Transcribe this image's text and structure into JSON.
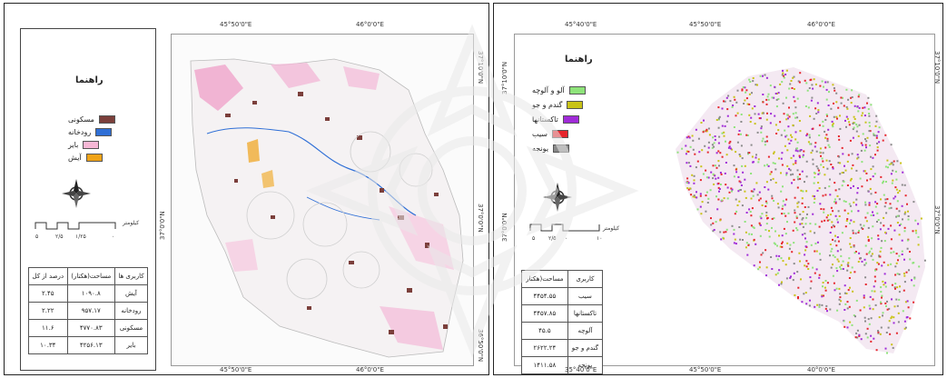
{
  "left_map": {
    "legend_title": "راهنما",
    "legend_items": [
      {
        "label": "مسکونی",
        "color": "#7b3f3b"
      },
      {
        "label": "رودخانه",
        "color": "#2f6fd6"
      },
      {
        "label": "بایر",
        "color": "#f6b7d5"
      },
      {
        "label": "آیش",
        "color": "#f0a318"
      }
    ],
    "scale_unit": "کیلومتر",
    "scale_ticks": [
      "۵",
      "۲/۵",
      "۱/۲۵",
      "۰"
    ],
    "coords": {
      "top_left": "45°50'0\"E",
      "top_right": "46°0'0\"E",
      "bottom_left": "45°50'0\"E",
      "bottom_right": "46°0'0\"E",
      "left_mid": "37°0'0\"N",
      "right_top": "37°10'0\"N",
      "right_mid": "37°0'0\"N",
      "right_bottom": "36°50'0\"N"
    },
    "table": {
      "headers": [
        "کاربری ها",
        "مساحت(هکتار)",
        "درصد از کل"
      ],
      "rows": [
        [
          "آیش",
          "۱۰۹۰.۸",
          "۲.۴۵"
        ],
        [
          "رودخانه",
          "۹۵۷.۱۷",
          "۲.۲۲"
        ],
        [
          "مسکونی",
          "۴۷۷۰.۸۳",
          "۱۱.۶"
        ],
        [
          "بایر",
          "۴۲۵۶.۱۳",
          "۱۰.۳۴"
        ]
      ]
    }
  },
  "right_map": {
    "legend_title": "راهنما",
    "legend_items": [
      {
        "label": "آلو و آلوچه",
        "color": "#8ee37a"
      },
      {
        "label": "گندم و جو",
        "color": "#c9c317"
      },
      {
        "label": "تاکستانها",
        "color": "#a02bd8"
      },
      {
        "label": "سیب",
        "color": "#e6262d"
      },
      {
        "label": "یونجه",
        "color": "#8a8a8a"
      }
    ],
    "scale_unit": "کیلومتر",
    "scale_ticks": [
      "۵",
      "۲/۵",
      "۰",
      "۱۰"
    ],
    "coords": {
      "top_1": "45°40'0\"E",
      "top_2": "45°50'0\"E",
      "top_3": "46°0'0\"E",
      "bottom_1": "35°40'0\"E",
      "bottom_2": "45°50'0\"E",
      "bottom_3": "40°0'0\"E",
      "left_top": "37°10'0\"N",
      "left_mid": "37°0'0\"N",
      "right_top": "37°10'0\"N",
      "right_mid": "37°0'0\"N"
    },
    "table": {
      "headers": [
        "کاربری",
        "مساحت(هکتار"
      ],
      "rows": [
        [
          "سیب",
          "۴۴۵۴.۵۵"
        ],
        [
          "تاکستانها",
          "۴۴۵۷.۸۵"
        ],
        [
          "آلوچه",
          "۴۵.۵"
        ],
        [
          "گندم و جو",
          "۲۶۲۲.۲۴"
        ],
        [
          "یونجه",
          "۱۴۱۱.۵۸"
        ]
      ]
    }
  },
  "colors": {
    "frame": "#222222",
    "map_fill": "#f7f7f7"
  }
}
